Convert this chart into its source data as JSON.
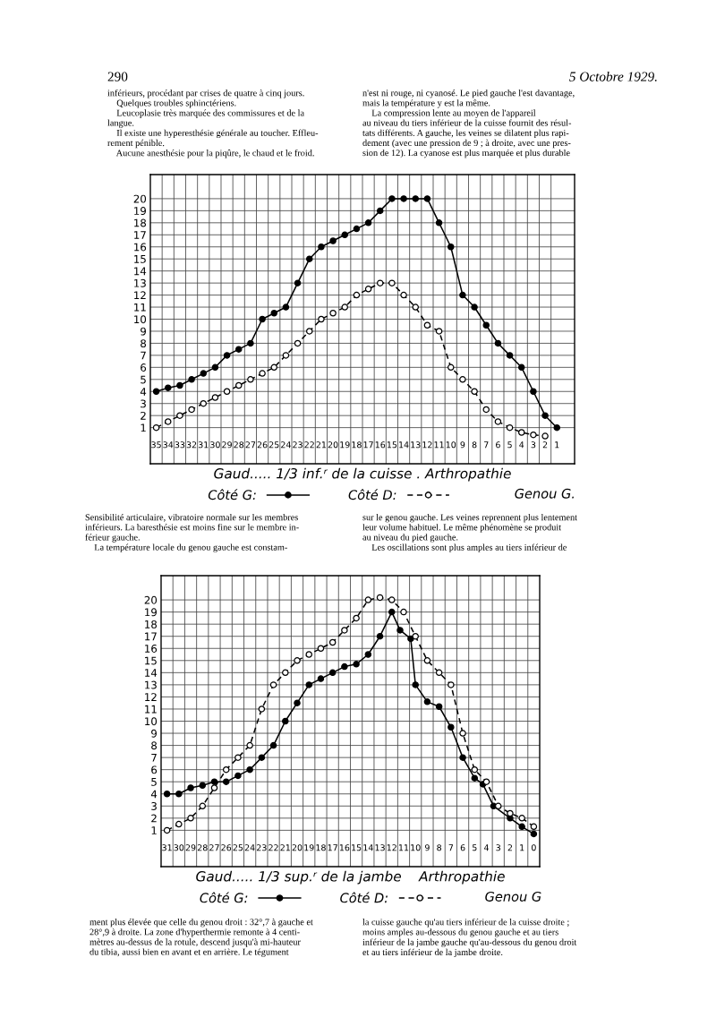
{
  "chart_data": [
    {
      "type": "line",
      "xlabel": "Gaud..... 1/3 inf.ʳ de la cuisse . Arthropathie",
      "xlim": [
        35.5,
        -0.5
      ],
      "xticks": [
        35,
        34,
        33,
        32,
        31,
        30,
        29,
        28,
        27,
        26,
        25,
        24,
        23,
        22,
        21,
        20,
        19,
        18,
        17,
        16,
        15,
        14,
        13,
        12,
        11,
        10,
        9,
        8,
        7,
        6,
        5,
        4,
        3,
        2,
        1
      ],
      "ylim": [
        -2,
        22
      ],
      "yticks": [
        1,
        2,
        3,
        4,
        5,
        6,
        7,
        8,
        9,
        10,
        11,
        12,
        13,
        14,
        15,
        16,
        17,
        18,
        19,
        20
      ],
      "grid": true,
      "legend": "bottom",
      "marker": "circle",
      "series": [
        {
          "name": "Côté G:",
          "color": "#000000",
          "line_style": "solid",
          "x": [
            35,
            34,
            33,
            32,
            31,
            30,
            29,
            28,
            27,
            26,
            25,
            24,
            23,
            22,
            21,
            20,
            19,
            18,
            17,
            16,
            15,
            14,
            13,
            12,
            11,
            10,
            9,
            8,
            7,
            6,
            5,
            4,
            3,
            2,
            1
          ],
          "values": [
            4,
            4.3,
            4.5,
            5,
            5.5,
            6,
            7,
            7.5,
            8,
            10,
            10.5,
            11,
            13,
            15,
            16,
            16.5,
            17,
            17.5,
            18,
            19,
            20,
            20,
            20,
            20,
            18,
            16,
            12,
            11,
            9.5,
            8,
            7,
            6,
            4,
            2,
            1
          ]
        },
        {
          "name": "Côté D:",
          "color": "#000000",
          "line_style": "dashed",
          "x": [
            35,
            34,
            33,
            32,
            31,
            30,
            29,
            28,
            27,
            26,
            25,
            24,
            23,
            22,
            21,
            20,
            19,
            18,
            17,
            16,
            15,
            14,
            13,
            12,
            11,
            10,
            9,
            8,
            7,
            6,
            5,
            4,
            3,
            2
          ],
          "values": [
            1,
            1.5,
            2,
            2.5,
            3,
            3.5,
            4,
            4.5,
            5,
            5.5,
            6,
            7,
            8,
            9,
            10,
            10.5,
            11,
            12,
            12.5,
            13,
            13,
            12,
            11,
            9.5,
            9,
            6,
            5,
            4,
            2.5,
            1.5,
            1,
            0.6,
            0.4,
            0.3
          ]
        }
      ],
      "annotations": [
        "Genou G.",
        "290",
        "5 Octobre 1929.",
        "inférieurs, procédant par crises de quatre à cinq jours.\n    Quelques troubles sphinctériens.\n    Leucoplasie très marquée des commissures et de la\nlangue.\n    Il existe une hyperesthésie générale au toucher. Effleu-\nrement pénible.\n    Aucune anesthésie pour la piqûre, le chaud et le froid.",
        "n'est ni rouge, ni cyanosé. Le pied gauche l'est davantage,\nmais la température y est la même.\n    La compression lente au moyen de l'appareil\nau niveau du tiers inférieur de la cuisse fournit des résul-\ntats différents. A gauche, les veines se dilatent plus rapi-\ndement (avec une pression de 9 ; à droite, avec une pres-\nsion de 12). La cyanose est plus marquée et plus durable",
        "Sensibilité articulaire, vibratoire normale sur les membres\ninférieurs. La baresthésie est moins fine sur le membre in-\nférieur gauche.\n    La température locale du genou gauche est constam-",
        "sur le genou gauche. Les veines reprennent plus lentement\nleur volume habituel. Le même phénomène se produit\nau niveau du pied gauche.\n    Les oscillations sont plus amples au tiers inférieur de"
      ]
    },
    {
      "type": "line",
      "xlabel": "Gaud..... 1/3 sup.ʳ de la jambe    Arthropathie",
      "xlim": [
        31.5,
        -0.5
      ],
      "xticks": [
        31,
        30,
        29,
        28,
        27,
        26,
        25,
        24,
        23,
        22,
        21,
        20,
        19,
        18,
        17,
        16,
        15,
        14,
        13,
        12,
        11,
        10,
        9,
        8,
        7,
        6,
        5,
        4,
        3,
        2,
        1,
        0
      ],
      "ylim": [
        -2,
        22
      ],
      "yticks": [
        1,
        2,
        3,
        4,
        5,
        6,
        7,
        8,
        9,
        10,
        11,
        12,
        13,
        14,
        15,
        16,
        17,
        18,
        19,
        20
      ],
      "grid": true,
      "legend": "bottom",
      "marker": "circle",
      "series": [
        {
          "name": "Côté G:",
          "color": "#000000",
          "line_style": "solid",
          "x": [
            31,
            30,
            29,
            28,
            27,
            26,
            25,
            24,
            23,
            22,
            21,
            20,
            19,
            18,
            17,
            16,
            15,
            14,
            13,
            12,
            11.3,
            10.4,
            10,
            9,
            8,
            7,
            6,
            5,
            4.3,
            3.4,
            2,
            1,
            0
          ],
          "values": [
            4,
            4,
            4.5,
            4.7,
            5,
            5,
            5.5,
            6,
            7,
            8,
            10,
            11.5,
            13,
            13.5,
            14,
            14.5,
            14.7,
            15.5,
            17,
            19,
            17.5,
            16.8,
            13,
            11.6,
            11.2,
            9.5,
            7,
            5.3,
            4.8,
            3,
            2,
            1.3,
            0.7
          ]
        },
        {
          "name": "Côté D:",
          "color": "#000000",
          "line_style": "dashed",
          "x": [
            31,
            30,
            29,
            28,
            27,
            26,
            25,
            24,
            23,
            22,
            21,
            20,
            19,
            18,
            17,
            16,
            15,
            14,
            13,
            12,
            11,
            10,
            9,
            8,
            7,
            6,
            5,
            4,
            3,
            2,
            1,
            0
          ],
          "values": [
            1,
            1.5,
            2,
            3,
            4.5,
            6,
            7,
            8,
            11,
            13,
            14,
            15,
            15.5,
            16,
            16.5,
            17.5,
            18.5,
            20,
            20.2,
            20,
            19,
            17,
            15,
            14,
            13,
            9,
            6,
            5,
            3,
            2.4,
            2,
            1.3
          ]
        }
      ],
      "annotations": [
        "Genou G",
        "ment plus élevée que celle du genou droit : 32°,7 à gauche et\n28°,9 à droite. La zone d'hyperthermie remonte à 4 centi-\nmètres au-dessus de la rotule, descend jusqu'à mi-hauteur\ndu tibia, aussi bien en avant et en arrière. Le tégument",
        "la cuisse gauche qu'au tiers inférieur de la cuisse droite ;\nmoins amples au-dessous du genou gauche et au tiers\ninférieur de la jambe gauche qu'au-dessous du genou droit\net au tiers inférieur de la jambe droite."
      ]
    }
  ]
}
